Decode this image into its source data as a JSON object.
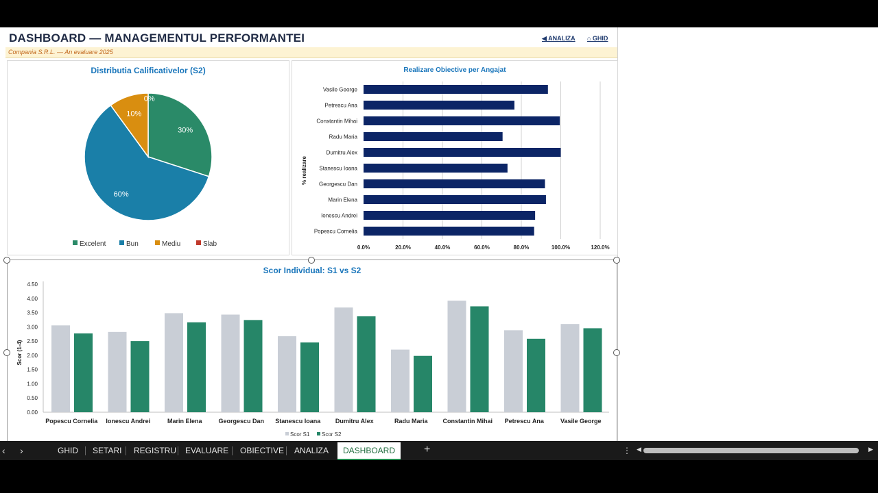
{
  "header": {
    "title": "DASHBOARD — MANAGEMENTUL PERFORMANTEI",
    "subtitle": "Compania S.R.L. — An evaluare 2025",
    "nav_analiza": "◀ ANALIZA",
    "nav_ghid": "⌂ GHID"
  },
  "tabs": [
    "GHID",
    "SETARI",
    "REGISTRU",
    "EVALUARE",
    "OBIECTIVE",
    "ANALIZA",
    "DASHBOARD"
  ],
  "active_tab": "DASHBOARD",
  "controls": {
    "add_sheet": "+",
    "more": "⋮",
    "prev": "‹",
    "next": "›"
  },
  "chart_data": [
    {
      "type": "pie",
      "title": "Distributia Calificativelor (S2)",
      "labels": [
        "Excelent",
        "Bun",
        "Mediu",
        "Slab"
      ],
      "values": [
        30,
        60,
        10,
        0
      ],
      "value_labels": [
        "30%",
        "60%",
        "10%",
        "0%"
      ],
      "colors": [
        "#2a8a68",
        "#1a7fa8",
        "#d98e10",
        "#c0392b"
      ],
      "legend": "bottom"
    },
    {
      "type": "bar",
      "orientation": "horizontal",
      "title": "Realizare Obiective per Angajat",
      "ylabel": "% realizare",
      "categories": [
        "Popescu Cornelia",
        "Ionescu Andrei",
        "Marin Elena",
        "Georgescu Dan",
        "Stanescu Ioana",
        "Dumitru Alex",
        "Radu Maria",
        "Constantin Mihai",
        "Petrescu Ana",
        "Vasile George"
      ],
      "values": [
        86.5,
        87,
        92.5,
        92,
        73,
        100,
        70.5,
        99.5,
        76.5,
        93.5
      ],
      "xlim": [
        0,
        120
      ],
      "ticks": [
        "0.0%",
        "20.0%",
        "40.0%",
        "60.0%",
        "80.0%",
        "100.0%",
        "120.0%"
      ],
      "color": "#0c2566",
      "grid": true
    },
    {
      "type": "bar",
      "title": "Scor Individual: S1 vs S2",
      "ylabel": "Scor (1-4)",
      "categories": [
        "Popescu Cornelia",
        "Ionescu Andrei",
        "Marin Elena",
        "Georgescu Dan",
        "Stanescu Ioana",
        "Dumitru Alex",
        "Radu Maria",
        "Constantin Mihai",
        "Petrescu Ana",
        "Vasile George"
      ],
      "series": [
        {
          "name": "Scor S1",
          "values": [
            3.05,
            2.82,
            3.48,
            3.43,
            2.67,
            3.68,
            2.2,
            3.92,
            2.88,
            3.1
          ],
          "color": "#c9ced6"
        },
        {
          "name": "Scor S2",
          "values": [
            2.77,
            2.5,
            3.16,
            3.24,
            2.45,
            3.37,
            1.98,
            3.72,
            2.58,
            2.95
          ],
          "color": "#268668"
        }
      ],
      "ylim": [
        0,
        4.5
      ],
      "ticks": [
        "0.00",
        "0.50",
        "1.00",
        "1.50",
        "2.00",
        "2.50",
        "3.00",
        "3.50",
        "4.00",
        "4.50"
      ],
      "legend": "bottom"
    }
  ]
}
